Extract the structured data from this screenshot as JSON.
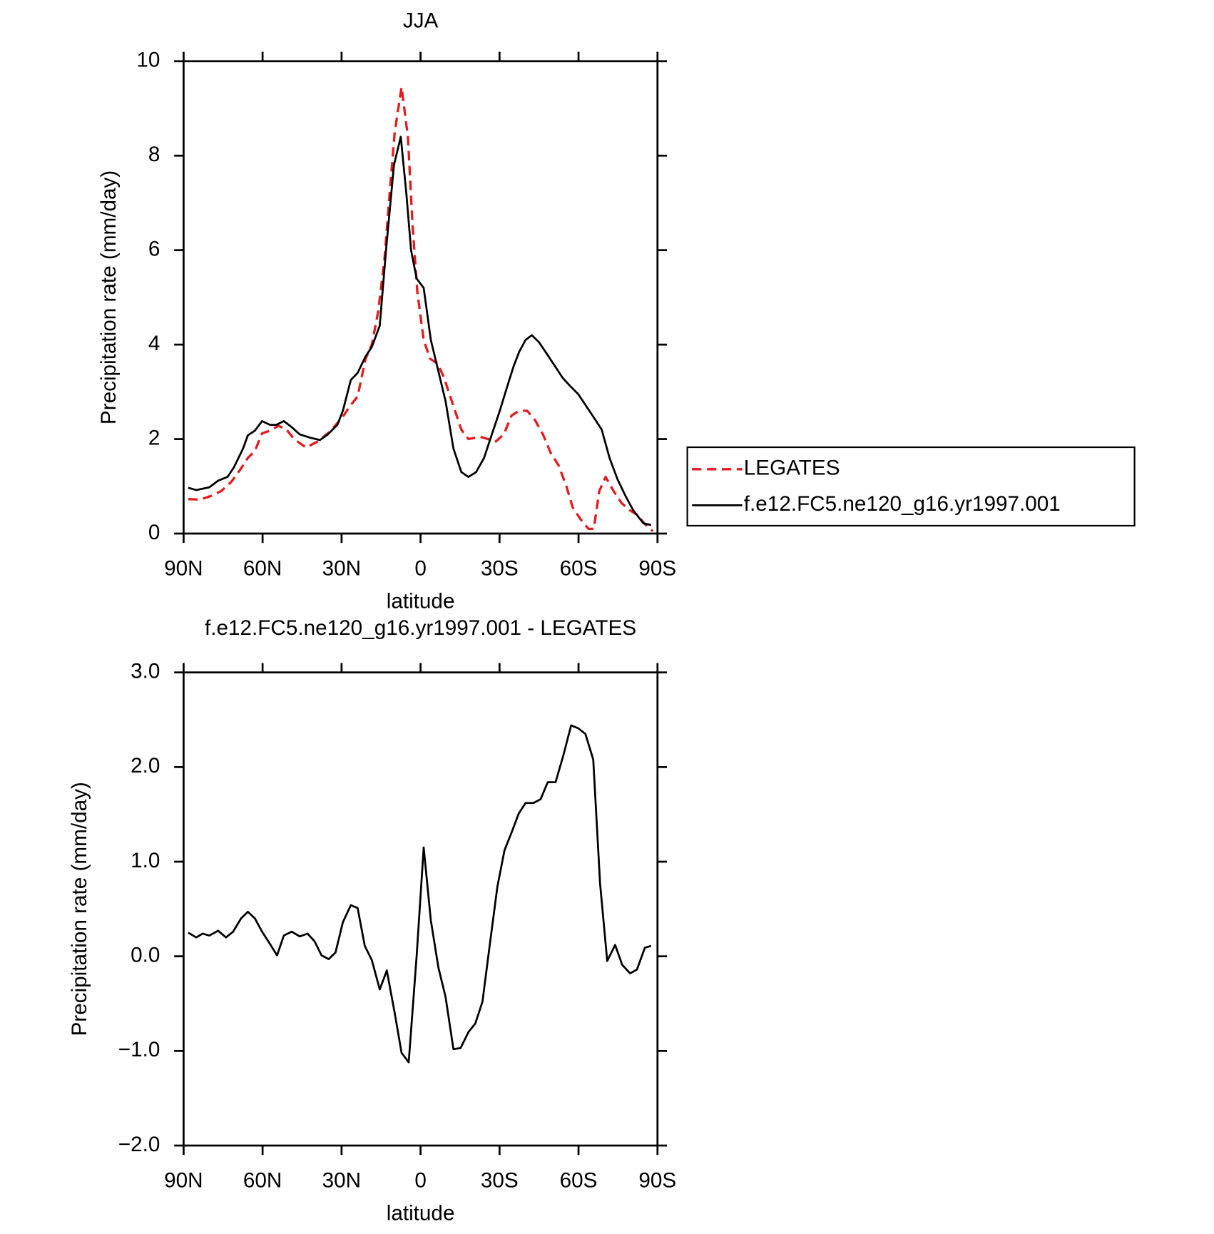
{
  "chart_data": [
    {
      "type": "line",
      "title": "JJA",
      "ylabel": "Precipitation rate (mm/day)",
      "xlabel": "latitude",
      "xlim": [
        90,
        -90
      ],
      "xticks": [
        {
          "value": 90,
          "label": "90N"
        },
        {
          "value": 60,
          "label": "60N"
        },
        {
          "value": 30,
          "label": "30N"
        },
        0,
        {
          "value": -30,
          "label": "30S"
        },
        {
          "value": -60,
          "label": "60S"
        },
        {
          "value": -90,
          "label": "90S"
        }
      ],
      "ylim": [
        0,
        10
      ],
      "yticks": [
        0,
        2,
        4,
        6,
        8,
        10
      ],
      "legend": "right",
      "series": [
        {
          "name": "LEGATES",
          "color": "#e41a1c",
          "dashed": true,
          "x": [
            88.2,
            83.7,
            79.3,
            75.7,
            71.8,
            68.5,
            65.6,
            62.9,
            60.2,
            57.2,
            53.9,
            50.9,
            48.0,
            43.5,
            39.0,
            34.6,
            29.8,
            26.8,
            23.9,
            20.9,
            18.5,
            16.1,
            13.7,
            11.6,
            9.8,
            7.2,
            4.8,
            3.0,
            1.2,
            -1.2,
            -3.6,
            -6.5,
            -8.9,
            -11.9,
            -15.5,
            -18.2,
            -22.6,
            -25.6,
            -28.6,
            -31.6,
            -34.6,
            -37.5,
            -40.5,
            -43.5,
            -46.5,
            -49.5,
            -52.4,
            -55.4,
            -57.8,
            -60.8,
            -63.8,
            -65.8,
            -67.9,
            -70.3,
            -73.3,
            -76.3,
            -79.3,
            -82.2,
            -85.2,
            -88.2
          ],
          "values": [
            0.73,
            0.72,
            0.8,
            0.9,
            1.1,
            1.35,
            1.6,
            1.75,
            2.12,
            2.18,
            2.28,
            2.2,
            2.0,
            1.82,
            1.95,
            2.15,
            2.45,
            2.7,
            2.9,
            3.7,
            4.0,
            4.7,
            5.8,
            7.3,
            8.5,
            9.45,
            8.4,
            6.5,
            5.1,
            4.1,
            3.7,
            3.6,
            3.3,
            2.8,
            2.2,
            2.0,
            2.05,
            2.0,
            1.95,
            2.1,
            2.5,
            2.6,
            2.6,
            2.4,
            2.1,
            1.7,
            1.45,
            1.0,
            0.55,
            0.3,
            0.1,
            0.1,
            0.9,
            1.2,
            0.9,
            0.65,
            0.5,
            0.4,
            0.2,
            0.05
          ]
        },
        {
          "name": "f.e12.FC5.ne120_g16.yr1997.001",
          "color": "#000000",
          "dashed": false,
          "x": [
            88.2,
            85.2,
            80.2,
            76.9,
            73.3,
            70.9,
            67.4,
            65.6,
            62.9,
            60.2,
            57.2,
            54.8,
            51.9,
            48.9,
            45.9,
            42.0,
            38.2,
            35.2,
            31.6,
            29.5,
            26.5,
            23.9,
            20.9,
            18.5,
            15.5,
            13.1,
            10.1,
            7.5,
            5.4,
            3.6,
            1.5,
            -1.2,
            -3.9,
            -6.5,
            -9.5,
            -12.5,
            -15.5,
            -18.2,
            -21.1,
            -24.1,
            -27.1,
            -30.1,
            -33.4,
            -35.4,
            -37.5,
            -39.9,
            -42.3,
            -45.0,
            -48.0,
            -51.0,
            -53.9,
            -56.9,
            -59.9,
            -62.9,
            -65.9,
            -68.8,
            -71.8,
            -74.8,
            -77.8,
            -80.7,
            -84.6,
            -87.6
          ],
          "values": [
            0.97,
            0.92,
            0.98,
            1.12,
            1.2,
            1.4,
            1.8,
            2.08,
            2.18,
            2.38,
            2.3,
            2.3,
            2.38,
            2.25,
            2.1,
            2.03,
            1.98,
            2.1,
            2.3,
            2.6,
            3.25,
            3.4,
            3.75,
            3.95,
            4.4,
            6.0,
            7.8,
            8.4,
            7.2,
            6.0,
            5.4,
            5.2,
            4.1,
            3.5,
            2.8,
            1.8,
            1.3,
            1.2,
            1.3,
            1.6,
            2.1,
            2.6,
            3.2,
            3.55,
            3.85,
            4.1,
            4.2,
            4.05,
            3.8,
            3.55,
            3.3,
            3.12,
            2.95,
            2.7,
            2.45,
            2.2,
            1.6,
            1.15,
            0.8,
            0.5,
            0.22,
            0.18
          ]
        }
      ]
    },
    {
      "type": "line",
      "title": "f.e12.FC5.ne120_g16.yr1997.001 - LEGATES",
      "ylabel": "Precipitation rate (mm/day)",
      "xlabel": "latitude",
      "xlim": [
        90,
        -90
      ],
      "xticks": [
        {
          "value": 90,
          "label": "90N"
        },
        {
          "value": 60,
          "label": "60N"
        },
        {
          "value": 30,
          "label": "30N"
        },
        0,
        {
          "value": -30,
          "label": "30S"
        },
        {
          "value": -60,
          "label": "60S"
        },
        {
          "value": -90,
          "label": "90S"
        }
      ],
      "ylim": [
        -2,
        3
      ],
      "yticks": [
        {
          "value": -2,
          "label": "−2.0"
        },
        {
          "value": -1,
          "label": "−1.0"
        },
        {
          "value": 0,
          "label": "0.0"
        },
        {
          "value": 1,
          "label": "1.0"
        },
        {
          "value": 2,
          "label": "2.0"
        },
        {
          "value": 3,
          "label": "3.0"
        }
      ],
      "series": [
        {
          "color": "#000000",
          "dashed": false,
          "x": [
            88.2,
            85.2,
            82.8,
            80.2,
            76.9,
            73.9,
            71.2,
            68.2,
            65.6,
            62.9,
            60.2,
            57.2,
            54.5,
            51.9,
            48.9,
            45.9,
            42.9,
            40.3,
            37.6,
            34.9,
            32.3,
            29.5,
            26.5,
            23.9,
            21.2,
            18.5,
            15.5,
            12.8,
            9.8,
            7.2,
            4.5,
            1.5,
            -1.2,
            -3.9,
            -6.8,
            -9.5,
            -12.5,
            -15.2,
            -18.2,
            -20.8,
            -23.5,
            -26.2,
            -29.2,
            -31.9,
            -34.6,
            -37.3,
            -39.9,
            -42.9,
            -45.6,
            -48.3,
            -51.3,
            -54.2,
            -57.2,
            -59.9,
            -62.6,
            -65.6,
            -68.2,
            -70.9,
            -73.9,
            -76.6,
            -79.6,
            -82.2,
            -85.2,
            -87.6
          ],
          "values": [
            0.25,
            0.2,
            0.24,
            0.22,
            0.27,
            0.2,
            0.26,
            0.4,
            0.47,
            0.4,
            0.26,
            0.13,
            0.01,
            0.22,
            0.26,
            0.21,
            0.24,
            0.16,
            0.01,
            -0.03,
            0.04,
            0.36,
            0.54,
            0.51,
            0.11,
            -0.04,
            -0.35,
            -0.15,
            -0.6,
            -1.02,
            -1.12,
            0.0,
            1.15,
            0.38,
            -0.12,
            -0.43,
            -0.98,
            -0.97,
            -0.8,
            -0.71,
            -0.48,
            0.1,
            0.74,
            1.12,
            1.31,
            1.51,
            1.62,
            1.62,
            1.66,
            1.84,
            1.84,
            2.12,
            2.44,
            2.41,
            2.35,
            2.08,
            0.77,
            -0.05,
            0.12,
            -0.09,
            -0.18,
            -0.14,
            0.09,
            0.11
          ]
        }
      ]
    }
  ]
}
